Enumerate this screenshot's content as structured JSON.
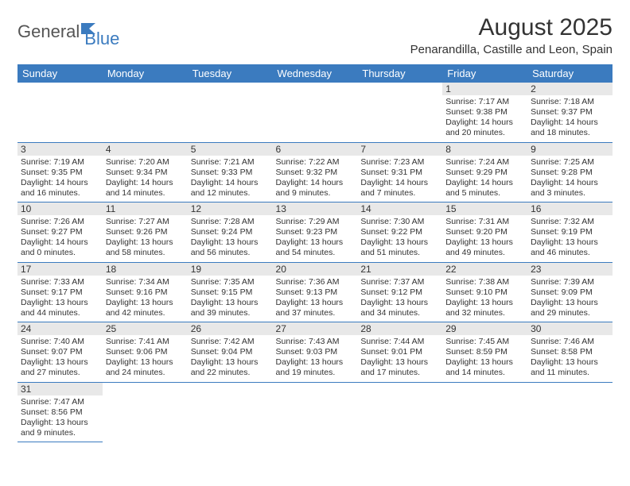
{
  "logo": {
    "general": "General",
    "blue": "Blue"
  },
  "title": "August 2025",
  "location": "Penarandilla, Castille and Leon, Spain",
  "colors": {
    "header_bg": "#3b7bbf",
    "header_text": "#ffffff",
    "line": "#3b7bbf",
    "daynum_bg": "#e8e8e8",
    "text": "#333333"
  },
  "weekdays": [
    "Sunday",
    "Monday",
    "Tuesday",
    "Wednesday",
    "Thursday",
    "Friday",
    "Saturday"
  ],
  "weeks": [
    [
      null,
      null,
      null,
      null,
      null,
      {
        "n": "1",
        "sunrise": "Sunrise: 7:17 AM",
        "sunset": "Sunset: 9:38 PM",
        "daylight": "Daylight: 14 hours and 20 minutes."
      },
      {
        "n": "2",
        "sunrise": "Sunrise: 7:18 AM",
        "sunset": "Sunset: 9:37 PM",
        "daylight": "Daylight: 14 hours and 18 minutes."
      }
    ],
    [
      {
        "n": "3",
        "sunrise": "Sunrise: 7:19 AM",
        "sunset": "Sunset: 9:35 PM",
        "daylight": "Daylight: 14 hours and 16 minutes."
      },
      {
        "n": "4",
        "sunrise": "Sunrise: 7:20 AM",
        "sunset": "Sunset: 9:34 PM",
        "daylight": "Daylight: 14 hours and 14 minutes."
      },
      {
        "n": "5",
        "sunrise": "Sunrise: 7:21 AM",
        "sunset": "Sunset: 9:33 PM",
        "daylight": "Daylight: 14 hours and 12 minutes."
      },
      {
        "n": "6",
        "sunrise": "Sunrise: 7:22 AM",
        "sunset": "Sunset: 9:32 PM",
        "daylight": "Daylight: 14 hours and 9 minutes."
      },
      {
        "n": "7",
        "sunrise": "Sunrise: 7:23 AM",
        "sunset": "Sunset: 9:31 PM",
        "daylight": "Daylight: 14 hours and 7 minutes."
      },
      {
        "n": "8",
        "sunrise": "Sunrise: 7:24 AM",
        "sunset": "Sunset: 9:29 PM",
        "daylight": "Daylight: 14 hours and 5 minutes."
      },
      {
        "n": "9",
        "sunrise": "Sunrise: 7:25 AM",
        "sunset": "Sunset: 9:28 PM",
        "daylight": "Daylight: 14 hours and 3 minutes."
      }
    ],
    [
      {
        "n": "10",
        "sunrise": "Sunrise: 7:26 AM",
        "sunset": "Sunset: 9:27 PM",
        "daylight": "Daylight: 14 hours and 0 minutes."
      },
      {
        "n": "11",
        "sunrise": "Sunrise: 7:27 AM",
        "sunset": "Sunset: 9:26 PM",
        "daylight": "Daylight: 13 hours and 58 minutes."
      },
      {
        "n": "12",
        "sunrise": "Sunrise: 7:28 AM",
        "sunset": "Sunset: 9:24 PM",
        "daylight": "Daylight: 13 hours and 56 minutes."
      },
      {
        "n": "13",
        "sunrise": "Sunrise: 7:29 AM",
        "sunset": "Sunset: 9:23 PM",
        "daylight": "Daylight: 13 hours and 54 minutes."
      },
      {
        "n": "14",
        "sunrise": "Sunrise: 7:30 AM",
        "sunset": "Sunset: 9:22 PM",
        "daylight": "Daylight: 13 hours and 51 minutes."
      },
      {
        "n": "15",
        "sunrise": "Sunrise: 7:31 AM",
        "sunset": "Sunset: 9:20 PM",
        "daylight": "Daylight: 13 hours and 49 minutes."
      },
      {
        "n": "16",
        "sunrise": "Sunrise: 7:32 AM",
        "sunset": "Sunset: 9:19 PM",
        "daylight": "Daylight: 13 hours and 46 minutes."
      }
    ],
    [
      {
        "n": "17",
        "sunrise": "Sunrise: 7:33 AM",
        "sunset": "Sunset: 9:17 PM",
        "daylight": "Daylight: 13 hours and 44 minutes."
      },
      {
        "n": "18",
        "sunrise": "Sunrise: 7:34 AM",
        "sunset": "Sunset: 9:16 PM",
        "daylight": "Daylight: 13 hours and 42 minutes."
      },
      {
        "n": "19",
        "sunrise": "Sunrise: 7:35 AM",
        "sunset": "Sunset: 9:15 PM",
        "daylight": "Daylight: 13 hours and 39 minutes."
      },
      {
        "n": "20",
        "sunrise": "Sunrise: 7:36 AM",
        "sunset": "Sunset: 9:13 PM",
        "daylight": "Daylight: 13 hours and 37 minutes."
      },
      {
        "n": "21",
        "sunrise": "Sunrise: 7:37 AM",
        "sunset": "Sunset: 9:12 PM",
        "daylight": "Daylight: 13 hours and 34 minutes."
      },
      {
        "n": "22",
        "sunrise": "Sunrise: 7:38 AM",
        "sunset": "Sunset: 9:10 PM",
        "daylight": "Daylight: 13 hours and 32 minutes."
      },
      {
        "n": "23",
        "sunrise": "Sunrise: 7:39 AM",
        "sunset": "Sunset: 9:09 PM",
        "daylight": "Daylight: 13 hours and 29 minutes."
      }
    ],
    [
      {
        "n": "24",
        "sunrise": "Sunrise: 7:40 AM",
        "sunset": "Sunset: 9:07 PM",
        "daylight": "Daylight: 13 hours and 27 minutes."
      },
      {
        "n": "25",
        "sunrise": "Sunrise: 7:41 AM",
        "sunset": "Sunset: 9:06 PM",
        "daylight": "Daylight: 13 hours and 24 minutes."
      },
      {
        "n": "26",
        "sunrise": "Sunrise: 7:42 AM",
        "sunset": "Sunset: 9:04 PM",
        "daylight": "Daylight: 13 hours and 22 minutes."
      },
      {
        "n": "27",
        "sunrise": "Sunrise: 7:43 AM",
        "sunset": "Sunset: 9:03 PM",
        "daylight": "Daylight: 13 hours and 19 minutes."
      },
      {
        "n": "28",
        "sunrise": "Sunrise: 7:44 AM",
        "sunset": "Sunset: 9:01 PM",
        "daylight": "Daylight: 13 hours and 17 minutes."
      },
      {
        "n": "29",
        "sunrise": "Sunrise: 7:45 AM",
        "sunset": "Sunset: 8:59 PM",
        "daylight": "Daylight: 13 hours and 14 minutes."
      },
      {
        "n": "30",
        "sunrise": "Sunrise: 7:46 AM",
        "sunset": "Sunset: 8:58 PM",
        "daylight": "Daylight: 13 hours and 11 minutes."
      }
    ],
    [
      {
        "n": "31",
        "sunrise": "Sunrise: 7:47 AM",
        "sunset": "Sunset: 8:56 PM",
        "daylight": "Daylight: 13 hours and 9 minutes."
      },
      null,
      null,
      null,
      null,
      null,
      null
    ]
  ]
}
